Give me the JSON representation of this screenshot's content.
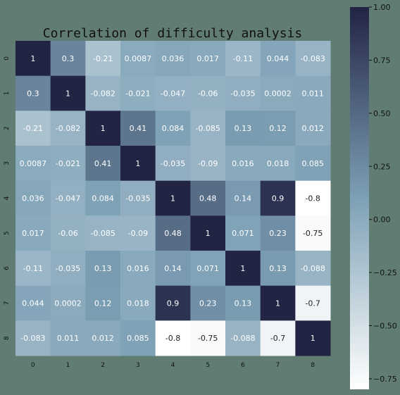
{
  "chart_data": {
    "type": "heatmap",
    "title": "Correlation of difficulty analysis",
    "x_labels": [
      "0",
      "1",
      "2",
      "3",
      "4",
      "5",
      "6",
      "7",
      "8"
    ],
    "y_labels": [
      "0",
      "1",
      "2",
      "3",
      "4",
      "5",
      "6",
      "7",
      "8"
    ],
    "values": [
      [
        1,
        0.3,
        -0.21,
        0.0087,
        0.036,
        0.017,
        -0.11,
        0.044,
        -0.083
      ],
      [
        0.3,
        1,
        -0.082,
        -0.021,
        -0.047,
        -0.06,
        -0.035,
        0.0002,
        0.011
      ],
      [
        -0.21,
        -0.082,
        1,
        0.41,
        0.084,
        -0.085,
        0.13,
        0.12,
        0.012
      ],
      [
        0.0087,
        -0.021,
        0.41,
        1,
        -0.035,
        -0.09,
        0.016,
        0.018,
        0.085
      ],
      [
        0.036,
        -0.047,
        0.084,
        -0.035,
        1,
        0.48,
        0.14,
        0.9,
        -0.8
      ],
      [
        0.017,
        -0.06,
        -0.085,
        -0.09,
        0.48,
        1,
        0.071,
        0.23,
        -0.75
      ],
      [
        -0.11,
        -0.035,
        0.13,
        0.016,
        0.14,
        0.071,
        1,
        0.13,
        -0.088
      ],
      [
        0.044,
        0.0002,
        0.12,
        0.018,
        0.9,
        0.23,
        0.13,
        1,
        -0.7
      ],
      [
        -0.083,
        0.011,
        0.012,
        0.085,
        -0.8,
        -0.75,
        -0.088,
        -0.7,
        1
      ]
    ],
    "value_labels": [
      [
        "1",
        "0.3",
        "-0.21",
        "0.0087",
        "0.036",
        "0.017",
        "-0.11",
        "0.044",
        "-0.083"
      ],
      [
        "0.3",
        "1",
        "-0.082",
        "-0.021",
        "-0.047",
        "-0.06",
        "-0.035",
        "0.0002",
        "0.011"
      ],
      [
        "-0.21",
        "-0.082",
        "1",
        "0.41",
        "0.084",
        "-0.085",
        "0.13",
        "0.12",
        "0.012"
      ],
      [
        "0.0087",
        "-0.021",
        "0.41",
        "1",
        "-0.035",
        "-0.09",
        "0.016",
        "0.018",
        "0.085"
      ],
      [
        "0.036",
        "-0.047",
        "0.084",
        "-0.035",
        "1",
        "0.48",
        "0.14",
        "0.9",
        "-0.8"
      ],
      [
        "0.017",
        "-0.06",
        "-0.085",
        "-0.09",
        "0.48",
        "1",
        "0.071",
        "0.23",
        "-0.75"
      ],
      [
        "-0.11",
        "-0.035",
        "0.13",
        "0.016",
        "0.14",
        "0.071",
        "1",
        "0.13",
        "-0.088"
      ],
      [
        "0.044",
        "0.0002",
        "0.12",
        "0.018",
        "0.9",
        "0.23",
        "0.13",
        "1",
        "-0.7"
      ],
      [
        "-0.083",
        "0.011",
        "0.012",
        "0.085",
        "-0.8",
        "-0.75",
        "-0.088",
        "-0.7",
        "1"
      ]
    ],
    "colorbar": {
      "min": -0.8,
      "max": 1.0,
      "ticks": [
        1.0,
        0.75,
        0.5,
        0.25,
        0.0,
        -0.25,
        -0.5,
        -0.75
      ],
      "tick_labels": [
        "1.00",
        "0.75",
        "0.50",
        "0.25",
        "0.00",
        "−0.25",
        "−0.50",
        "−0.75"
      ]
    },
    "colors": {
      "background": "#617d73",
      "scale_high": "#222444",
      "scale_mid": "#7da0b5",
      "scale_low": "#ffffff"
    },
    "grid": false
  }
}
